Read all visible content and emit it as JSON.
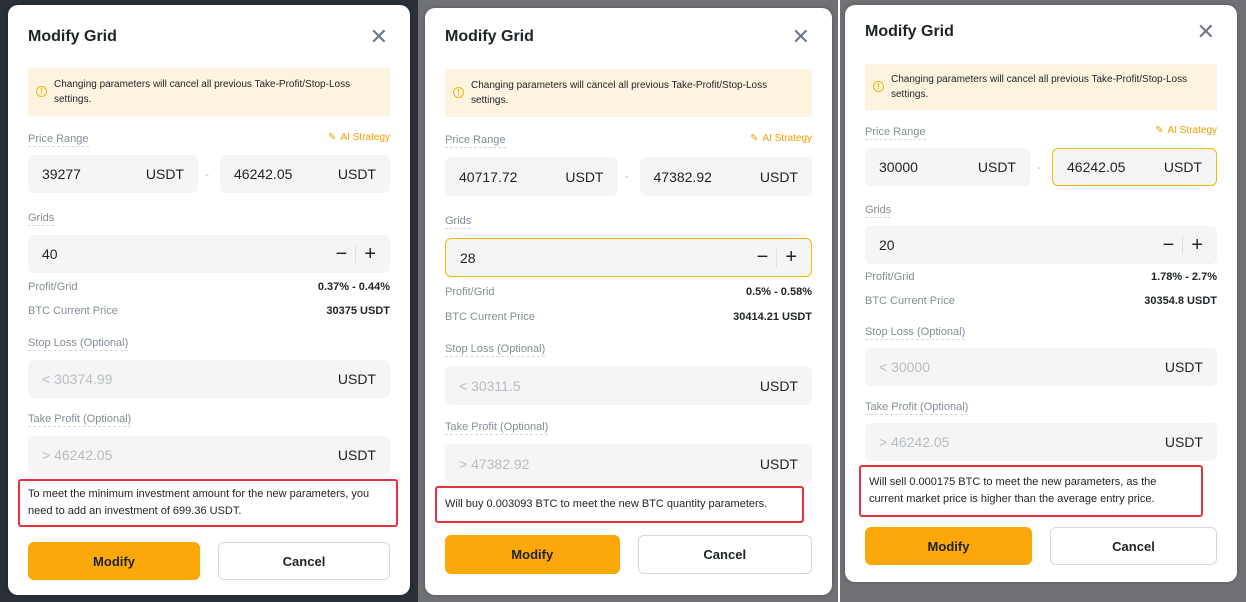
{
  "panels": [
    {
      "title": "Modify Grid",
      "warning": "Changing parameters will cancel all previous Take-Profit/Stop-Loss settings.",
      "price_range_label": "Price Range",
      "ai_strategy": "AI Strategy",
      "low_price": "39277",
      "high_price": "46242.05",
      "unit": "USDT",
      "grids_label": "Grids",
      "grids": "40",
      "profit_label": "Profit/Grid",
      "profit": "0.37% - 0.44%",
      "btc_label": "BTC Current Price",
      "btc_price": "30375 USDT",
      "sl_label": "Stop Loss (Optional)",
      "sl_placeholder": "< 30374.99",
      "tp_label": "Take Profit (Optional)",
      "tp_placeholder": "> 46242.05",
      "note": "To meet the minimum investment amount for the new parameters, you need to add an investment of 699.36 USDT.",
      "modify": "Modify",
      "cancel": "Cancel"
    },
    {
      "title": "Modify Grid",
      "warning": "Changing parameters will cancel all previous Take-Profit/Stop-Loss settings.",
      "price_range_label": "Price Range",
      "ai_strategy": "AI Strategy",
      "low_price": "40717.72",
      "high_price": "47382.92",
      "unit": "USDT",
      "grids_label": "Grids",
      "grids": "28",
      "profit_label": "Profit/Grid",
      "profit": "0.5% - 0.58%",
      "btc_label": "BTC Current Price",
      "btc_price": "30414.21 USDT",
      "sl_label": "Stop Loss (Optional)",
      "sl_placeholder": "< 30311.5",
      "tp_label": "Take Profit (Optional)",
      "tp_placeholder": "> 47382.92",
      "note": "Will buy 0.003093 BTC to meet the new BTC quantity parameters.",
      "modify": "Modify",
      "cancel": "Cancel"
    },
    {
      "title": "Modify Grid",
      "warning": "Changing parameters will cancel all previous Take-Profit/Stop-Loss settings.",
      "price_range_label": "Price Range",
      "ai_strategy": "AI Strategy",
      "low_price": "30000",
      "high_price": "46242.05",
      "unit": "USDT",
      "grids_label": "Grids",
      "grids": "20",
      "profit_label": "Profit/Grid",
      "profit": "1.78% - 2.7%",
      "btc_label": "BTC Current Price",
      "btc_price": "30354.8 USDT",
      "sl_label": "Stop Loss (Optional)",
      "sl_placeholder": "< 30000",
      "tp_label": "Take Profit (Optional)",
      "tp_placeholder": "> 46242.05",
      "note": "Will sell 0.000175 BTC to meet the new parameters, as the current market price is higher than the average entry price.",
      "modify": "Modify",
      "cancel": "Cancel"
    }
  ],
  "colors": {
    "accent": "#fca80a",
    "highlight_border": "#e8323c",
    "warning_bg": "#fdf3de"
  }
}
